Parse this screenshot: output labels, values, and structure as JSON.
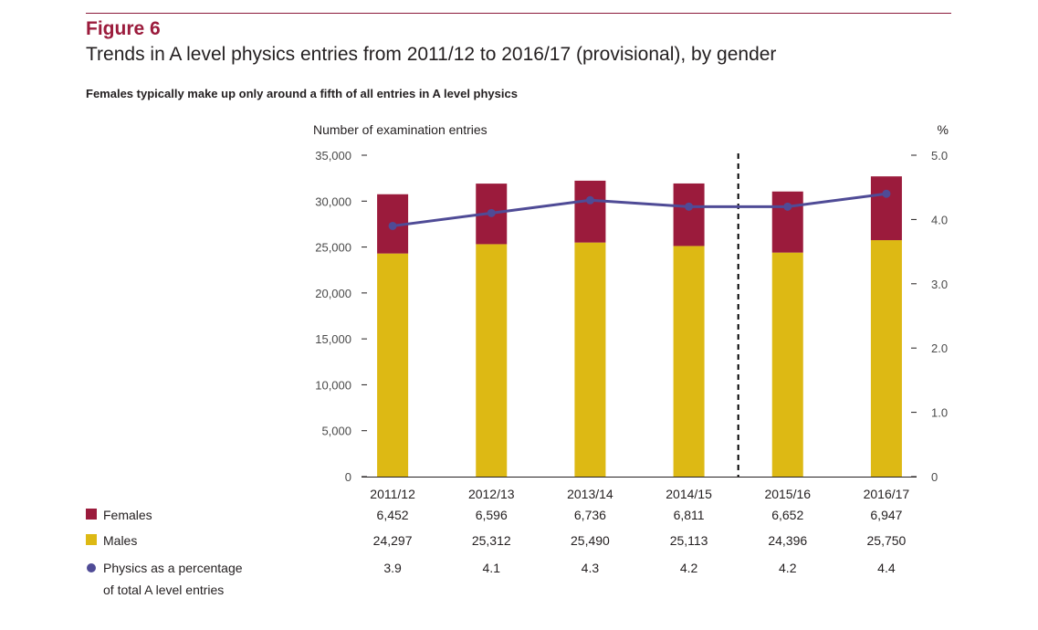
{
  "header": {
    "figure_label": "Figure 6",
    "title": "Trends in A level physics entries from 2011/12 to 2016/17 (provisional), by gender",
    "subtitle": "Females typically make up only around a fifth of all entries in A level physics"
  },
  "colors": {
    "rule": "#8b1a3a",
    "females": "#9b1b3c",
    "males": "#ddb914",
    "percentage": "#4f4b96"
  },
  "chart_data": {
    "type": "bar",
    "stacked": true,
    "categories": [
      "2011/12",
      "2012/13",
      "2013/14",
      "2014/15",
      "2015/16",
      "2016/17"
    ],
    "series": [
      {
        "name": "Males",
        "values": [
          24297,
          25312,
          25490,
          25113,
          24396,
          25750
        ],
        "value_labels": [
          "24,297",
          "25,312",
          "25,490",
          "25,113",
          "24,396",
          "25,750"
        ]
      },
      {
        "name": "Females",
        "values": [
          6452,
          6596,
          6736,
          6811,
          6652,
          6947
        ],
        "value_labels": [
          "6,452",
          "6,596",
          "6,736",
          "6,811",
          "6,652",
          "6,947"
        ]
      }
    ],
    "line_series": {
      "name_line1": "Physics as a percentage",
      "name_line2": "of total A level entries",
      "values": [
        3.9,
        4.1,
        4.3,
        4.2,
        4.2,
        4.4
      ],
      "value_labels": [
        "3.9",
        "4.1",
        "4.3",
        "4.2",
        "4.2",
        "4.4"
      ],
      "axis": "right"
    },
    "ylabel_left": "Number of examination entries",
    "ylabel_right": "%",
    "ylim_left": [
      0,
      35000
    ],
    "ylim_right": [
      0,
      5.0
    ],
    "yticks_left": [
      "0",
      "5,000",
      "10,000",
      "15,000",
      "20,000",
      "25,000",
      "30,000",
      "35,000"
    ],
    "yticks_left_values": [
      0,
      5000,
      10000,
      15000,
      20000,
      25000,
      30000,
      35000
    ],
    "yticks_right": [
      "0",
      "1.0",
      "2.0",
      "3.0",
      "4.0",
      "5.0"
    ],
    "yticks_right_values": [
      0,
      1,
      2,
      3,
      4,
      5
    ],
    "divider_after_category": "2014/15",
    "grid": false,
    "legend_placement": "bottom-left table"
  }
}
